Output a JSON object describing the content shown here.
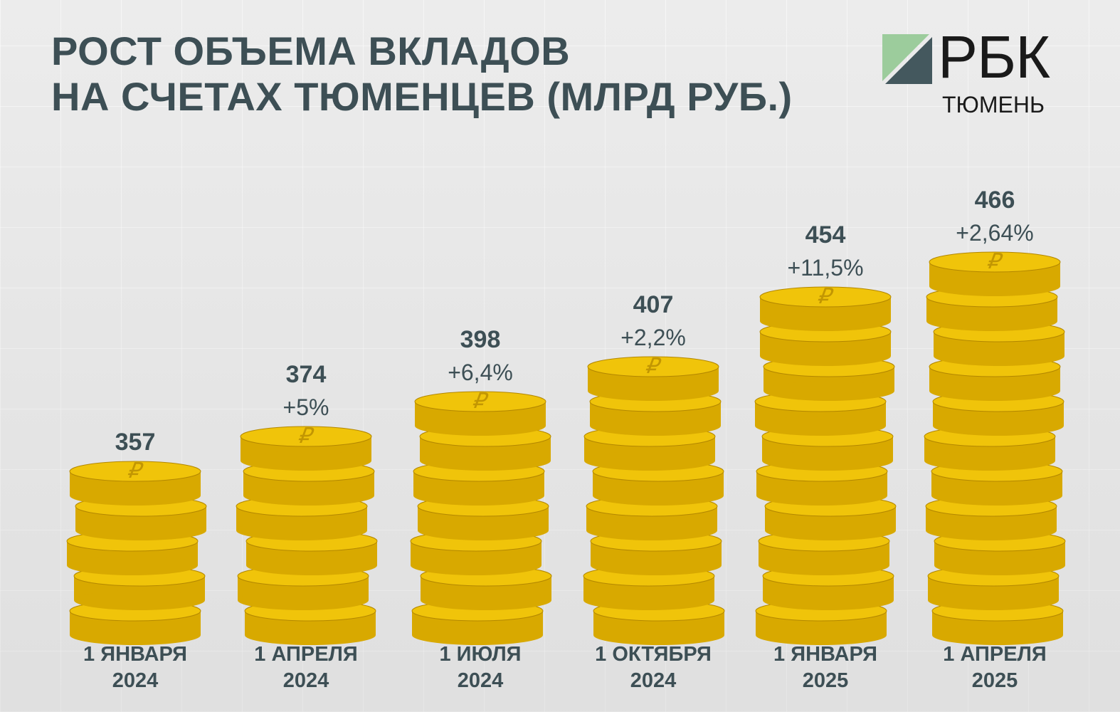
{
  "title_lines": [
    "РОСТ ОБЪЕМА ВКЛАДОВ",
    "НА СЧЕТАХ ТЮМЕНЦЕВ (МЛРД РУБ.)"
  ],
  "logo": {
    "text": "РБК",
    "subtitle": "ТЮМЕНЬ"
  },
  "colors": {
    "coin_face": "#f0c40a",
    "coin_side": "#d8a900",
    "coin_edge": "#b38700",
    "text": "#3d4f55",
    "logo_green_light": "#9ccc9c",
    "logo_dark": "#44585e"
  },
  "chart_data": {
    "type": "bar",
    "style": "stacked coins",
    "title": "РОСТ ОБЪЕМА ВКЛАДОВ НА СЧЕТАХ ТЮМЕНЦЕВ (МЛРД РУБ.)",
    "categories": [
      [
        "1 ЯНВАРЯ",
        "2024"
      ],
      [
        "1 АПРЕЛЯ",
        "2024"
      ],
      [
        "1 ИЮЛЯ",
        "2024"
      ],
      [
        "1 ОКТЯБРЯ",
        "2024"
      ],
      [
        "1 ЯНВАРЯ",
        "2025"
      ],
      [
        "1 АПРЕЛЯ",
        "2025"
      ]
    ],
    "values": [
      357,
      374,
      398,
      407,
      454,
      466
    ],
    "value_labels": [
      "357",
      "374",
      "398",
      "407",
      "454",
      "466"
    ],
    "change_labels": [
      "",
      "+5%",
      "+6,4%",
      "+2,2%",
      "+11,5%",
      "+2,64%"
    ],
    "coins_per_stack": [
      5,
      6,
      7,
      8,
      10,
      11
    ],
    "coin_symbol": "₽",
    "grid": false,
    "legend": "none"
  }
}
